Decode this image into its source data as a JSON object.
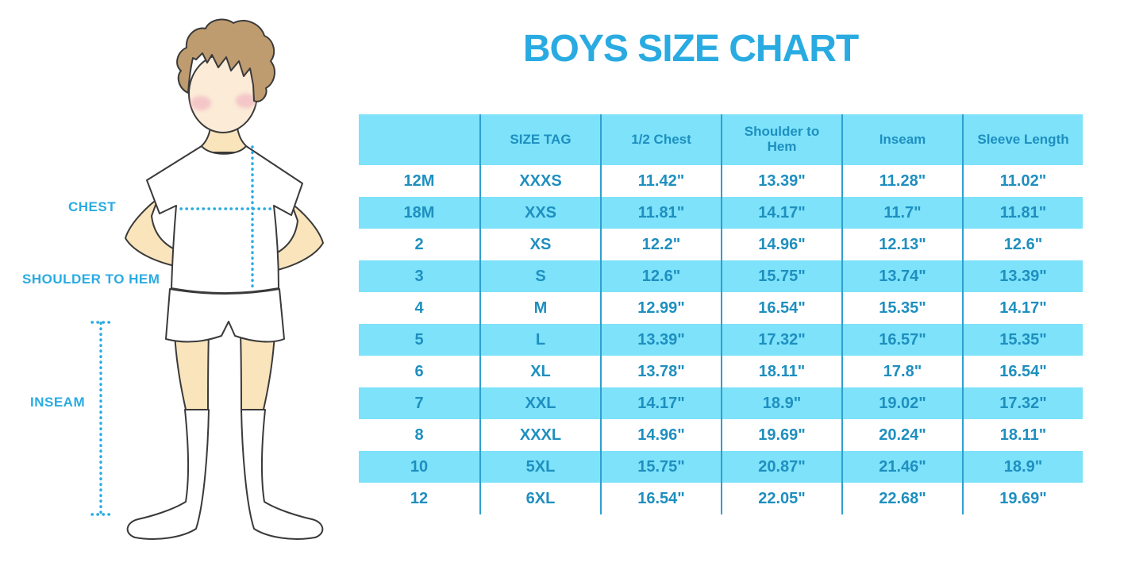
{
  "title": "BOYS SIZE CHART",
  "figure_labels": {
    "chest": "CHEST",
    "shoulder_to_hem": "SHOULDER TO HEM",
    "inseam": "INSEAM"
  },
  "chart_data": {
    "type": "table",
    "title": "BOYS SIZE CHART",
    "columns": [
      "",
      "SIZE TAG",
      "1/2 Chest",
      "Shoulder to Hem",
      "Inseam",
      "Sleeve Length"
    ],
    "rows": [
      [
        "12M",
        "XXXS",
        "11.42\"",
        "13.39\"",
        "11.28\"",
        "11.02\""
      ],
      [
        "18M",
        "XXS",
        "11.81\"",
        "14.17\"",
        "11.7\"",
        "11.81\""
      ],
      [
        "2",
        "XS",
        "12.2\"",
        "14.96\"",
        "12.13\"",
        "12.6\""
      ],
      [
        "3",
        "S",
        "12.6\"",
        "15.75\"",
        "13.74\"",
        "13.39\""
      ],
      [
        "4",
        "M",
        "12.99\"",
        "16.54\"",
        "15.35\"",
        "14.17\""
      ],
      [
        "5",
        "L",
        "13.39\"",
        "17.32\"",
        "16.57\"",
        "15.35\""
      ],
      [
        "6",
        "XL",
        "13.78\"",
        "18.11\"",
        "17.8\"",
        "16.54\""
      ],
      [
        "7",
        "XXL",
        "14.17\"",
        "18.9\"",
        "19.02\"",
        "17.32\""
      ],
      [
        "8",
        "XXXL",
        "14.96\"",
        "19.69\"",
        "20.24\"",
        "18.11\""
      ],
      [
        "10",
        "5XL",
        "15.75\"",
        "20.87\"",
        "21.46\"",
        "18.9\""
      ],
      [
        "12",
        "6XL",
        "16.54\"",
        "22.05\"",
        "22.68\"",
        "19.69\""
      ]
    ],
    "layout": {
      "header_background": "#7DE2FA",
      "row_stripe_background": "#7DE2FA",
      "alternating_rows": true,
      "column_divider_color": "#2E9FD0"
    }
  },
  "colors": {
    "accent_blue": "#29ABE2",
    "table_text": "#1E8FBF",
    "stripe_blue": "#7DE2FA",
    "divider_blue": "#2E9FD0",
    "skin": "#F9E4BC",
    "face_skin": "#FBEBD7",
    "hair_brown": "#BE9C70",
    "blush_pink": "#F0AEBE",
    "outline": "#3A3A3A"
  }
}
